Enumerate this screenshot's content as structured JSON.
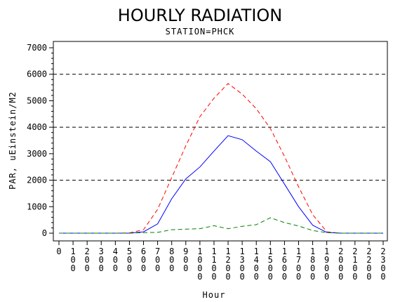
{
  "chart_data": {
    "type": "line",
    "title": "HOURLY RADIATION",
    "subtitle": "STATION=PHCK",
    "xlabel": "Hour",
    "ylabel": "PAR, uEinstein/M2",
    "ylim": [
      0,
      7000
    ],
    "y_ticks": [
      0,
      1000,
      2000,
      3000,
      4000,
      5000,
      6000,
      7000
    ],
    "reference_lines": [
      2000,
      4000,
      6000
    ],
    "x": [
      "0",
      "100",
      "200",
      "300",
      "400",
      "500",
      "600",
      "700",
      "800",
      "900",
      "1000",
      "1100",
      "1200",
      "1300",
      "1400",
      "1500",
      "1600",
      "1700",
      "1800",
      "1900",
      "2000",
      "2100",
      "2200",
      "2300"
    ],
    "series": [
      {
        "color": "#ff0000",
        "style": "dashed",
        "values": [
          0,
          0,
          0,
          0,
          0,
          10,
          130,
          900,
          2100,
          3300,
          4400,
          5100,
          5650,
          5250,
          4700,
          3950,
          2900,
          1750,
          700,
          50,
          0,
          0,
          0,
          0
        ]
      },
      {
        "color": "#0000ff",
        "style": "solid",
        "values": [
          0,
          0,
          0,
          0,
          0,
          0,
          50,
          350,
          1300,
          2050,
          2500,
          3100,
          3680,
          3530,
          3100,
          2700,
          1850,
          1000,
          300,
          30,
          0,
          0,
          0,
          0
        ]
      },
      {
        "color": "#008000",
        "style": "dashed",
        "values": [
          0,
          0,
          0,
          0,
          0,
          0,
          20,
          30,
          130,
          150,
          170,
          280,
          170,
          260,
          320,
          580,
          400,
          270,
          100,
          20,
          0,
          0,
          0,
          0
        ]
      }
    ]
  }
}
